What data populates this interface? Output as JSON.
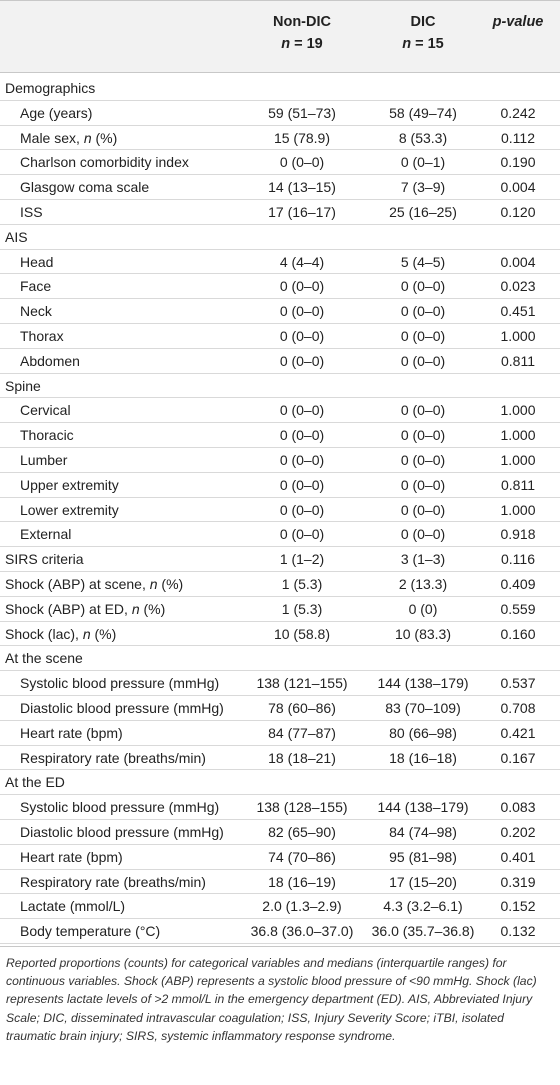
{
  "header": {
    "col1": "Non-DIC",
    "col1_n_label": "n",
    "col1_n": " = 19",
    "col2": "DIC",
    "col2_n_label": "n",
    "col2_n": " = 15",
    "col3": "p-value"
  },
  "rows": [
    {
      "label": "Demographics",
      "section": true,
      "v1": "",
      "v2": "",
      "p": ""
    },
    {
      "label": "Age (years)",
      "section": false,
      "v1": "59 (51–73)",
      "v2": "58 (49–74)",
      "p": "0.242"
    },
    {
      "label": "Male sex, ",
      "label_italic": "n",
      "label_suffix": " (%)",
      "section": false,
      "v1": "15 (78.9)",
      "v2": "8 (53.3)",
      "p": "0.112"
    },
    {
      "label": "Charlson comorbidity index",
      "section": false,
      "v1": "0 (0–0)",
      "v2": "0 (0–1)",
      "p": "0.190"
    },
    {
      "label": "Glasgow coma scale",
      "section": false,
      "v1": "14 (13–15)",
      "v2": "7 (3–9)",
      "p": "0.004"
    },
    {
      "label": "ISS",
      "section": false,
      "v1": "17 (16–17)",
      "v2": "25 (16–25)",
      "p": "0.120"
    },
    {
      "label": "AIS",
      "section": true,
      "v1": "",
      "v2": "",
      "p": ""
    },
    {
      "label": "Head",
      "section": false,
      "v1": "4 (4–4)",
      "v2": "5 (4–5)",
      "p": "0.004"
    },
    {
      "label": "Face",
      "section": false,
      "v1": "0 (0–0)",
      "v2": "0 (0–0)",
      "p": "0.023"
    },
    {
      "label": "Neck",
      "section": false,
      "v1": "0 (0–0)",
      "v2": "0 (0–0)",
      "p": "0.451"
    },
    {
      "label": "Thorax",
      "section": false,
      "v1": "0 (0–0)",
      "v2": "0 (0–0)",
      "p": "1.000"
    },
    {
      "label": "Abdomen",
      "section": false,
      "v1": "0 (0–0)",
      "v2": "0 (0–0)",
      "p": "0.811"
    },
    {
      "label": "Spine",
      "section": true,
      "v1": "",
      "v2": "",
      "p": ""
    },
    {
      "label": "Cervical",
      "section": false,
      "v1": "0 (0–0)",
      "v2": "0 (0–0)",
      "p": "1.000"
    },
    {
      "label": "Thoracic",
      "section": false,
      "v1": "0 (0–0)",
      "v2": "0 (0–0)",
      "p": "1.000"
    },
    {
      "label": "Lumber",
      "section": false,
      "v1": "0 (0–0)",
      "v2": "0 (0–0)",
      "p": "1.000"
    },
    {
      "label": "Upper extremity",
      "section": false,
      "v1": "0 (0–0)",
      "v2": "0 (0–0)",
      "p": "0.811"
    },
    {
      "label": "Lower extremity",
      "section": false,
      "v1": "0 (0–0)",
      "v2": "0 (0–0)",
      "p": "1.000"
    },
    {
      "label": "External",
      "section": false,
      "v1": "0 (0–0)",
      "v2": "0 (0–0)",
      "p": "0.918"
    },
    {
      "label": "SIRS criteria",
      "section": true,
      "v1": "1 (1–2)",
      "v2": "3 (1–3)",
      "p": "0.116"
    },
    {
      "label": "Shock (ABP) at scene, ",
      "label_italic": "n",
      "label_suffix": " (%)",
      "section": true,
      "v1": "1 (5.3)",
      "v2": "2 (13.3)",
      "p": "0.409"
    },
    {
      "label": "Shock (ABP) at ED, ",
      "label_italic": "n",
      "label_suffix": " (%)",
      "section": true,
      "v1": "1 (5.3)",
      "v2": "0 (0)",
      "p": "0.559"
    },
    {
      "label": "Shock (lac), ",
      "label_italic": "n",
      "label_suffix": " (%)",
      "section": true,
      "v1": "10 (58.8)",
      "v2": "10 (83.3)",
      "p": "0.160"
    },
    {
      "label": "At the scene",
      "section": true,
      "v1": "",
      "v2": "",
      "p": ""
    },
    {
      "label": "Systolic blood pressure (mmHg)",
      "section": false,
      "v1": "138 (121–155)",
      "v2": "144 (138–179)",
      "p": "0.537"
    },
    {
      "label": "Diastolic blood pressure (mmHg)",
      "section": false,
      "v1": "78 (60–86)",
      "v2": "83 (70–109)",
      "p": "0.708"
    },
    {
      "label": "Heart rate (bpm)",
      "section": false,
      "v1": "84 (77–87)",
      "v2": "80 (66–98)",
      "p": "0.421"
    },
    {
      "label": "Respiratory rate (breaths/min)",
      "section": false,
      "v1": "18 (18–21)",
      "v2": "18 (16–18)",
      "p": "0.167"
    },
    {
      "label": "At the ED",
      "section": true,
      "v1": "",
      "v2": "",
      "p": ""
    },
    {
      "label": "Systolic blood pressure (mmHg)",
      "section": false,
      "v1": "138 (128–155)",
      "v2": "144 (138–179)",
      "p": "0.083"
    },
    {
      "label": "Diastolic blood pressure (mmHg)",
      "section": false,
      "v1": "82 (65–90)",
      "v2": "84 (74–98)",
      "p": "0.202"
    },
    {
      "label": "Heart rate (bpm)",
      "section": false,
      "v1": "74 (70–86)",
      "v2": "95 (81–98)",
      "p": "0.401"
    },
    {
      "label": "Respiratory rate (breaths/min)",
      "section": false,
      "v1": "18 (16–19)",
      "v2": "17 (15–20)",
      "p": "0.319"
    },
    {
      "label": "Lactate (mmol/L)",
      "section": false,
      "v1": "2.0 (1.3–2.9)",
      "v2": "4.3 (3.2–6.1)",
      "p": "0.152"
    },
    {
      "label": "Body temperature (°C)",
      "section": false,
      "v1": "36.8 (36.0–37.0)",
      "v2": "36.0 (35.7–36.8)",
      "p": "0.132"
    }
  ],
  "footnote": "Reported proportions (counts) for categorical variables and medians (interquartile ranges) for continuous variables. Shock (ABP) represents a systolic blood pressure of <90 mmHg. Shock (lac) represents lactate levels of >2 mmol/L in the emergency department (ED). AIS, Abbreviated Injury Scale; DIC, disseminated intravascular coagulation; ISS, Injury Severity Score; iTBI, isolated traumatic brain injury; SIRS, systemic inflammatory response syndrome."
}
